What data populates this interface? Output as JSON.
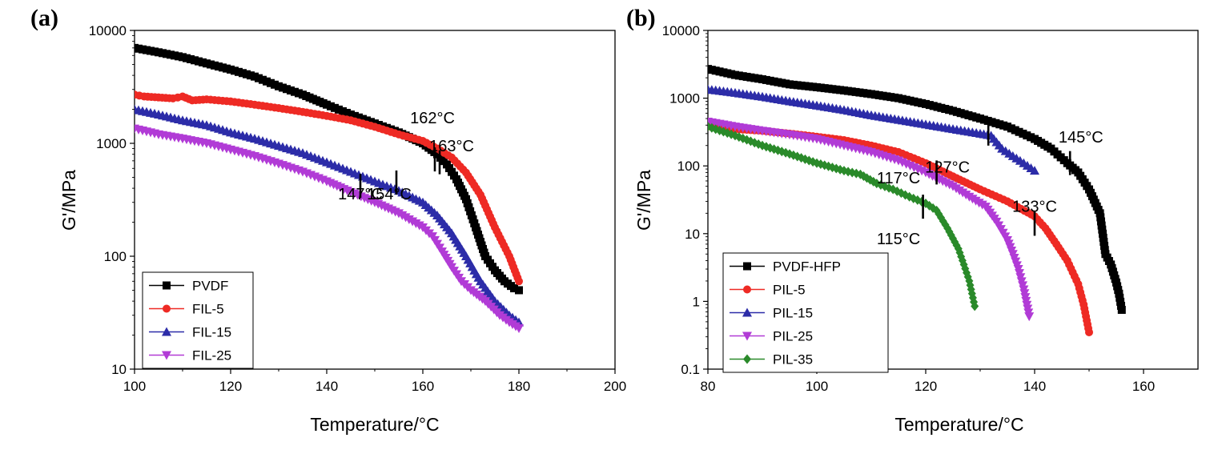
{
  "chart_data": [
    {
      "type": "line",
      "panel_label": "(a)",
      "xlabel": "Temperature/°C",
      "ylabel": "G'/MPa",
      "xlim": [
        100,
        200
      ],
      "ylim": [
        10,
        10000
      ],
      "yscale": "log",
      "x_ticks": [
        "100",
        "120",
        "140",
        "160",
        "180",
        "200"
      ],
      "y_ticks": [
        "10",
        "100",
        "1000",
        "10000"
      ],
      "legend_position": "bottom-left",
      "series": [
        {
          "name": "PVDF",
          "color": "#000000",
          "marker": "square",
          "x": [
            100,
            105,
            110,
            115,
            120,
            125,
            130,
            135,
            140,
            145,
            150,
            155,
            160,
            163,
            165,
            167,
            169,
            171,
            173,
            175,
            177,
            179,
            180
          ],
          "y": [
            7000,
            6400,
            5800,
            5100,
            4500,
            3900,
            3200,
            2700,
            2200,
            1800,
            1500,
            1250,
            1000,
            800,
            650,
            480,
            320,
            180,
            100,
            75,
            60,
            52,
            50
          ]
        },
        {
          "name": "FIL-5",
          "color": "#ee2a24",
          "marker": "circle",
          "x": [
            100,
            102,
            105,
            108,
            110,
            112,
            115,
            120,
            125,
            130,
            135,
            140,
            145,
            150,
            155,
            160,
            163,
            166,
            169,
            172,
            175,
            178,
            180
          ],
          "y": [
            2700,
            2600,
            2550,
            2500,
            2600,
            2400,
            2450,
            2350,
            2200,
            2050,
            1900,
            1750,
            1600,
            1400,
            1200,
            1050,
            900,
            750,
            550,
            350,
            180,
            100,
            60
          ]
        },
        {
          "name": "FIL-15",
          "color": "#2c2ca8",
          "marker": "triangle-up",
          "x": [
            100,
            105,
            110,
            115,
            120,
            125,
            130,
            135,
            140,
            145,
            150,
            155,
            160,
            163,
            166,
            169,
            172,
            175,
            178,
            180
          ],
          "y": [
            2000,
            1800,
            1600,
            1450,
            1250,
            1100,
            950,
            820,
            680,
            560,
            460,
            380,
            300,
            230,
            160,
            100,
            60,
            40,
            30,
            26
          ]
        },
        {
          "name": "FIL-25",
          "color": "#b13bd6",
          "marker": "triangle-down",
          "x": [
            100,
            105,
            110,
            115,
            120,
            125,
            130,
            135,
            140,
            145,
            150,
            155,
            160,
            162,
            164,
            166,
            168,
            170,
            173,
            176,
            178,
            180
          ],
          "y": [
            1350,
            1200,
            1100,
            1000,
            880,
            770,
            660,
            560,
            460,
            370,
            300,
            240,
            180,
            150,
            110,
            80,
            60,
            50,
            40,
            30,
            26,
            23
          ]
        }
      ],
      "annotations": [
        {
          "text": "162°C",
          "x": 162,
          "y": 1500,
          "marker_x": 162.5,
          "marker_y": 720
        },
        {
          "text": "163°C",
          "x": 166,
          "y": 850,
          "marker_x": 163.5,
          "marker_y": 680
        },
        {
          "text": "147°C",
          "x": 147,
          "y": 320,
          "marker_x": 147,
          "marker_y": 420
        },
        {
          "text": "154°C",
          "x": 153,
          "y": 320,
          "marker_x": 154.5,
          "marker_y": 450
        }
      ]
    },
    {
      "type": "line",
      "panel_label": "(b)",
      "xlabel": "Temperature/°C",
      "ylabel": "G'/MPa",
      "xlim": [
        80,
        170
      ],
      "ylim": [
        0.1,
        10000
      ],
      "yscale": "log",
      "x_ticks": [
        "80",
        "100",
        "120",
        "140",
        "160"
      ],
      "y_ticks": [
        "0.1",
        "1",
        "10",
        "100",
        "1000",
        "10000"
      ],
      "legend_position": "bottom-left",
      "series": [
        {
          "name": "PVDF-HFP",
          "color": "#000000",
          "marker": "square",
          "x": [
            80,
            85,
            90,
            95,
            100,
            105,
            110,
            115,
            120,
            125,
            130,
            135,
            140,
            143,
            146,
            148,
            150,
            152,
            153,
            154,
            155,
            155.5,
            156
          ],
          "y": [
            2700,
            2200,
            1900,
            1600,
            1450,
            1300,
            1150,
            1000,
            820,
            650,
            500,
            380,
            250,
            180,
            110,
            80,
            45,
            20,
            5,
            3.5,
            1.9,
            1.3,
            0.75
          ]
        },
        {
          "name": "PIL-5",
          "color": "#ee2a24",
          "marker": "circle",
          "x": [
            80,
            85,
            90,
            95,
            100,
            105,
            110,
            115,
            120,
            125,
            130,
            135,
            140,
            142,
            144,
            146,
            148,
            149,
            150
          ],
          "y": [
            380,
            350,
            330,
            300,
            270,
            240,
            200,
            160,
            110,
            70,
            45,
            30,
            18,
            12,
            7,
            4,
            1.8,
            0.9,
            0.35
          ]
        },
        {
          "name": "PIL-15",
          "color": "#2c2ca8",
          "marker": "triangle-up",
          "x": [
            80,
            85,
            90,
            95,
            100,
            105,
            110,
            115,
            120,
            125,
            130,
            132,
            134,
            136,
            138,
            140
          ],
          "y": [
            1350,
            1200,
            1050,
            900,
            780,
            670,
            560,
            480,
            410,
            350,
            300,
            280,
            180,
            140,
            110,
            85
          ]
        },
        {
          "name": "PIL-25",
          "color": "#b13bd6",
          "marker": "triangle-down",
          "x": [
            80,
            85,
            90,
            95,
            100,
            105,
            110,
            115,
            120,
            125,
            128,
            131,
            133,
            135,
            136,
            137,
            138,
            139
          ],
          "y": [
            450,
            380,
            330,
            290,
            250,
            200,
            160,
            120,
            80,
            50,
            35,
            25,
            15,
            8,
            5,
            3,
            1.5,
            0.6
          ]
        },
        {
          "name": "PIL-35",
          "color": "#2a8a2a",
          "marker": "diamond",
          "x": [
            80,
            85,
            90,
            95,
            100,
            105,
            108,
            111,
            114,
            117,
            120,
            122,
            124,
            126,
            127,
            128,
            129
          ],
          "y": [
            380,
            280,
            200,
            150,
            110,
            85,
            75,
            55,
            45,
            35,
            28,
            22,
            12,
            6,
            3.5,
            2,
            0.85
          ]
        }
      ],
      "annotations": [
        {
          "text": "145°C",
          "x": 148.5,
          "y": 220,
          "marker_x": 146.5,
          "marker_y": 110
        },
        {
          "text": "127°C",
          "x": 124,
          "y": 80,
          "marker_x": 131.5,
          "marker_y": 300
        },
        {
          "text": "117°C",
          "x": 115,
          "y": 55,
          "marker_x": 122,
          "marker_y": 80
        },
        {
          "text": "133°C",
          "x": 140,
          "y": 21,
          "marker_x": 140,
          "marker_y": 14
        },
        {
          "text": "115°C",
          "x": 115,
          "y": 7,
          "marker_x": 119.5,
          "marker_y": 25
        }
      ]
    }
  ]
}
